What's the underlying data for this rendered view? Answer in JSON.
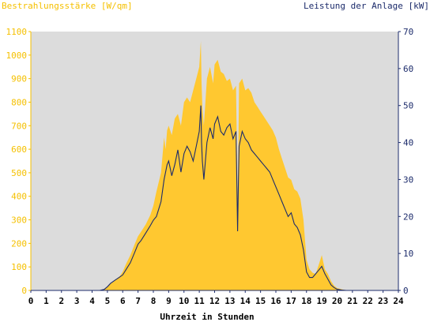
{
  "chart_data": {
    "type": "area",
    "title_left": "Bestrahlungsstärke [W/qm]",
    "title_right": "Leistung der Anlage [kW]",
    "xlabel": "Uhrzeit in Stunden",
    "xlim": [
      0,
      24
    ],
    "x_ticks": [
      "0",
      "1",
      "2",
      "3",
      "4",
      "5",
      "6",
      "7",
      "8",
      "9",
      "10",
      "11",
      "12",
      "13",
      "14",
      "15",
      "16",
      "17",
      "18",
      "19",
      "20",
      "21",
      "22",
      "23",
      "24"
    ],
    "y_left": {
      "lim": [
        0,
        1100
      ],
      "ticks": [
        "0",
        "100",
        "200",
        "300",
        "400",
        "500",
        "600",
        "700",
        "800",
        "900",
        "1000",
        "1100"
      ]
    },
    "y_right": {
      "lim": [
        0,
        70
      ],
      "ticks": [
        "0",
        "10",
        "20",
        "30",
        "40",
        "50",
        "60",
        "70"
      ]
    },
    "grid": false,
    "colors": {
      "plot_bg": "#dcdcdc",
      "irradiance": "#ffc830",
      "power": "#1c2b6b",
      "left_axis_text": "#f5c000",
      "right_axis_text": "#1c2b6b"
    },
    "series": [
      {
        "name": "Bestrahlungsstärke",
        "axis": "left",
        "style": "area",
        "x": [
          0,
          4.5,
          4.8,
          5.0,
          5.2,
          5.5,
          5.8,
          6.0,
          6.2,
          6.5,
          6.8,
          7.0,
          7.2,
          7.5,
          7.8,
          8.0,
          8.2,
          8.5,
          8.7,
          8.8,
          8.9,
          9.0,
          9.2,
          9.4,
          9.6,
          9.8,
          10.0,
          10.2,
          10.4,
          10.6,
          10.8,
          11.0,
          11.1,
          11.15,
          11.2,
          11.3,
          11.5,
          11.7,
          11.9,
          12.0,
          12.2,
          12.4,
          12.6,
          12.8,
          13.0,
          13.2,
          13.4,
          13.5,
          13.55,
          13.6,
          13.8,
          14.0,
          14.2,
          14.4,
          14.6,
          14.8,
          15.0,
          15.2,
          15.4,
          15.6,
          15.8,
          16.0,
          16.2,
          16.4,
          16.6,
          16.8,
          17.0,
          17.2,
          17.4,
          17.6,
          17.8,
          18.0,
          18.2,
          18.4,
          18.6,
          18.8,
          19.0,
          19.2,
          19.4,
          19.6,
          19.8,
          20.0,
          20.3,
          20.6,
          24
        ],
        "values": [
          0,
          0,
          5,
          15,
          30,
          45,
          60,
          80,
          110,
          150,
          200,
          230,
          250,
          280,
          320,
          360,
          420,
          500,
          650,
          600,
          680,
          700,
          660,
          730,
          750,
          700,
          800,
          820,
          800,
          850,
          900,
          950,
          1060,
          880,
          780,
          700,
          900,
          950,
          880,
          960,
          980,
          930,
          920,
          890,
          900,
          850,
          870,
          380,
          600,
          880,
          900,
          850,
          860,
          840,
          800,
          780,
          760,
          740,
          720,
          700,
          680,
          650,
          600,
          560,
          520,
          480,
          470,
          430,
          420,
          390,
          300,
          130,
          90,
          75,
          70,
          110,
          150,
          90,
          70,
          40,
          20,
          10,
          5,
          0,
          0
        ]
      },
      {
        "name": "Leistung",
        "axis": "right",
        "style": "line",
        "x": [
          0,
          4.5,
          4.8,
          5.0,
          5.2,
          5.5,
          5.8,
          6.0,
          6.2,
          6.5,
          6.8,
          7.0,
          7.2,
          7.5,
          7.8,
          8.0,
          8.2,
          8.5,
          8.7,
          8.8,
          8.9,
          9.0,
          9.2,
          9.4,
          9.6,
          9.8,
          10.0,
          10.2,
          10.4,
          10.6,
          10.8,
          11.0,
          11.1,
          11.15,
          11.2,
          11.3,
          11.5,
          11.7,
          11.9,
          12.0,
          12.2,
          12.4,
          12.6,
          12.8,
          13.0,
          13.2,
          13.4,
          13.5,
          13.55,
          13.6,
          13.8,
          14.0,
          14.2,
          14.4,
          14.6,
          14.8,
          15.0,
          15.2,
          15.4,
          15.6,
          15.8,
          16.0,
          16.2,
          16.4,
          16.6,
          16.8,
          17.0,
          17.2,
          17.4,
          17.6,
          17.8,
          18.0,
          18.2,
          18.4,
          18.6,
          18.8,
          19.0,
          19.2,
          19.4,
          19.6,
          19.8,
          20.0,
          20.3,
          20.6,
          24
        ],
        "values": [
          0,
          0,
          0.3,
          1,
          1.9,
          2.8,
          3.6,
          4.2,
          5.5,
          7.5,
          10.5,
          12.5,
          13.5,
          15.5,
          17.5,
          19.0,
          20.0,
          24.0,
          30.0,
          32.0,
          34.0,
          35.0,
          31.0,
          34.0,
          38.0,
          32.0,
          37.0,
          39.0,
          37.5,
          35.0,
          39.0,
          43.0,
          50.0,
          40.0,
          35.0,
          30.0,
          40.0,
          44.0,
          41.0,
          45.0,
          47.0,
          43.0,
          42.0,
          44.0,
          45.0,
          41.0,
          43.0,
          16.0,
          28.0,
          39.0,
          43.0,
          41.0,
          40.0,
          38.0,
          37.0,
          36.0,
          35.0,
          34.0,
          33.0,
          32.0,
          30.0,
          28.0,
          26.0,
          24.0,
          22.0,
          20.0,
          21.0,
          18.0,
          17.0,
          15.0,
          11.0,
          5.0,
          3.5,
          3.5,
          4.5,
          5.5,
          6.5,
          4.5,
          3.0,
          1.5,
          0.8,
          0.3,
          0.1,
          0,
          0
        ]
      }
    ]
  }
}
